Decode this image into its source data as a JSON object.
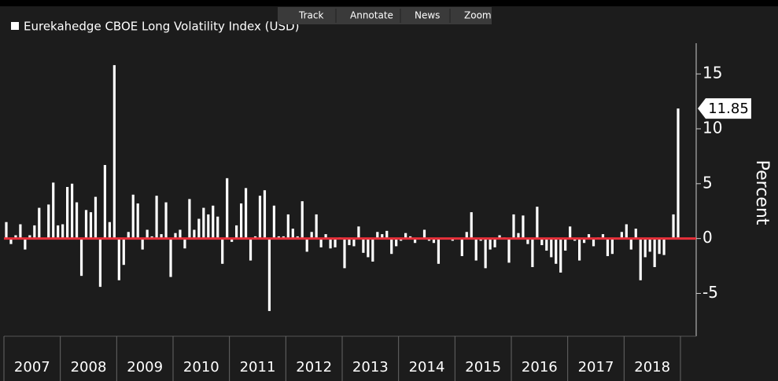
{
  "toolbar": [
    "Track",
    "Annotate",
    "News",
    "Zoom"
  ],
  "chart_data": {
    "type": "bar",
    "title": "Eurekahedge CBOE Long Volatility Index (USD)",
    "y_label": "Percent",
    "categories": [
      "2007",
      "2008",
      "2009",
      "2010",
      "2011",
      "2012",
      "2013",
      "2014",
      "2015",
      "2016",
      "2017",
      "2018"
    ],
    "values": [
      [
        1.5,
        -0.5,
        0.3,
        1.3,
        -1.0,
        0.3,
        1.2,
        2.8,
        0.0,
        3.1,
        5.1,
        1.2
      ],
      [
        1.3,
        4.7,
        5.0,
        3.3,
        -3.4,
        2.6,
        2.4,
        3.8,
        -4.4,
        6.7,
        1.5,
        15.8
      ],
      [
        -3.8,
        -2.4,
        0.6,
        4.0,
        3.2,
        -1.0,
        0.8,
        0.2,
        3.9,
        0.4,
        3.3,
        -3.5
      ],
      [
        0.5,
        0.8,
        -0.9,
        3.6,
        0.8,
        1.8,
        2.8,
        2.2,
        3.0,
        2.0,
        -2.3,
        5.5
      ],
      [
        -0.3,
        1.2,
        3.2,
        4.6,
        -2.0,
        0.2,
        3.9,
        4.4,
        -6.6,
        3.0,
        0.2,
        0.2
      ],
      [
        2.2,
        0.9,
        0.2,
        3.4,
        -1.2,
        0.6,
        2.2,
        -0.8,
        0.4,
        -0.9,
        -0.8,
        0.1
      ],
      [
        -2.7,
        -0.6,
        -0.7,
        1.1,
        -1.3,
        -1.7,
        -2.1,
        0.6,
        0.4,
        0.7,
        -1.4,
        -0.7
      ],
      [
        -0.2,
        0.5,
        0.2,
        -0.4,
        0.0,
        0.8,
        -0.2,
        -0.4,
        -2.3,
        0.0,
        0.0,
        -0.2
      ],
      [
        0.0,
        -1.6,
        0.6,
        2.4,
        -2.0,
        -0.2,
        -2.7,
        -1.0,
        -0.8,
        0.3,
        0.1,
        -2.2
      ],
      [
        2.2,
        0.5,
        2.1,
        -0.5,
        -2.6,
        2.9,
        -0.6,
        -1.1,
        -1.7,
        -2.3,
        -3.1,
        -1.1
      ],
      [
        1.1,
        -0.2,
        -2.0,
        -0.4,
        0.4,
        -0.7,
        0.1,
        0.4,
        -1.6,
        -1.4,
        0.0,
        0.6
      ],
      [
        1.3,
        -1.0,
        0.9,
        -3.8,
        -1.7,
        -1.2,
        -2.6,
        -1.4,
        -1.5,
        0.0,
        2.2,
        11.85
      ]
    ],
    "color": "#ffffff",
    "zero_line_color": "#e8303a",
    "ylim": [
      -8.9,
      17.8
    ],
    "yticks": [
      -5,
      0,
      5,
      10,
      15
    ]
  }
}
